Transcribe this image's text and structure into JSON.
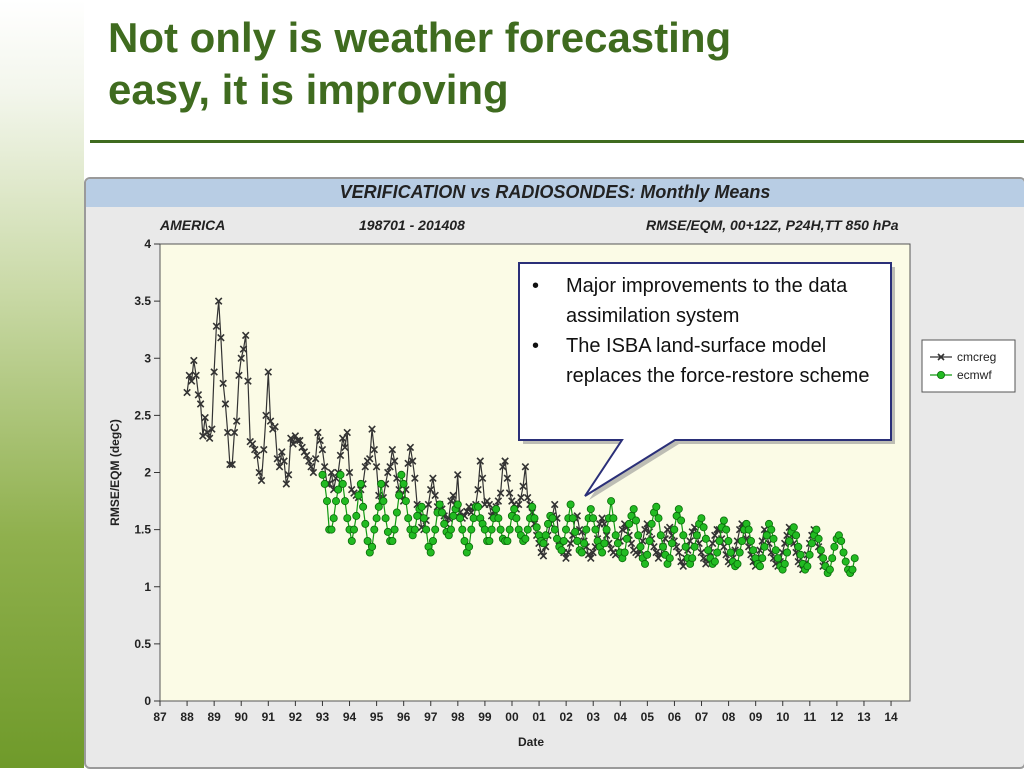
{
  "slide": {
    "title_line1": "Not only is weather forecasting",
    "title_line2": "easy, it is improving",
    "accent_color": "#3f6b1f"
  },
  "panel": {
    "title": "VERIFICATION vs RADIOSONDES: Monthly Means",
    "region": "AMERICA",
    "period": "198701 - 201408",
    "metric": "RMSE/EQM, 00+12Z, P24H,TT 850 hPa"
  },
  "callout": {
    "bullets": [
      "Major improvements to the data assimilation system",
      "The ISBA land-surface model replaces the force-restore scheme"
    ]
  },
  "chart_data": {
    "type": "line",
    "xlabel": "Date",
    "ylabel": "RMSE/EQM (degC)",
    "ylim": [
      0,
      4
    ],
    "xlim": [
      1987.0,
      2014.7
    ],
    "yticks": [
      "0",
      "0.5",
      "1",
      "1.5",
      "2",
      "2.5",
      "3",
      "3.5",
      "4"
    ],
    "xticks": [
      "87",
      "88",
      "89",
      "90",
      "91",
      "92",
      "93",
      "94",
      "95",
      "96",
      "97",
      "98",
      "99",
      "00",
      "01",
      "02",
      "03",
      "04",
      "05",
      "06",
      "07",
      "08",
      "09",
      "10",
      "11",
      "12",
      "13",
      "14"
    ],
    "legend_position": "right",
    "plot_background": "#fbfbe6",
    "grid": true,
    "series": [
      {
        "name": "cmcreg",
        "color": "#333333",
        "marker": "x",
        "start": 1988.0,
        "step": 0.0833,
        "values": [
          2.7,
          2.85,
          2.8,
          2.98,
          2.85,
          2.68,
          2.6,
          2.32,
          2.48,
          2.35,
          2.3,
          2.38,
          2.88,
          3.28,
          3.5,
          3.18,
          2.78,
          2.6,
          2.35,
          2.07,
          2.07,
          2.35,
          2.45,
          2.85,
          3.0,
          3.08,
          3.2,
          2.8,
          2.27,
          2.25,
          2.2,
          2.15,
          2.0,
          1.93,
          2.2,
          2.5,
          2.88,
          2.45,
          2.38,
          2.4,
          2.12,
          2.05,
          2.18,
          2.1,
          1.9,
          1.98,
          2.3,
          2.25,
          2.32,
          2.28,
          2.28,
          2.22,
          2.18,
          2.15,
          2.1,
          2.05,
          2.0,
          2.12,
          2.35,
          2.28,
          2.2,
          2.05,
          1.9,
          1.9,
          2.0,
          1.85,
          1.95,
          2.0,
          2.15,
          2.3,
          2.22,
          2.35,
          2.0,
          1.85,
          1.82,
          1.8,
          1.78,
          1.85,
          1.9,
          2.05,
          2.1,
          2.12,
          2.38,
          2.2,
          2.05,
          1.8,
          1.75,
          1.78,
          1.9,
          2.0,
          2.05,
          2.2,
          2.1,
          1.95,
          1.85,
          1.8,
          1.75,
          1.85,
          2.08,
          2.22,
          2.1,
          1.95,
          1.72,
          1.65,
          1.52,
          1.5,
          1.58,
          1.72,
          1.85,
          1.95,
          1.8,
          1.7,
          1.72,
          1.68,
          1.62,
          1.55,
          1.6,
          1.75,
          1.8,
          1.72,
          1.98,
          1.65,
          1.6,
          1.62,
          1.66,
          1.7,
          1.65,
          1.7,
          1.72,
          1.85,
          2.1,
          1.95,
          1.72,
          1.75,
          1.72,
          1.62,
          1.66,
          1.7,
          1.75,
          1.82,
          2.05,
          2.1,
          1.95,
          1.82,
          1.75,
          1.72,
          1.68,
          1.72,
          1.78,
          1.88,
          2.05,
          1.78,
          1.72,
          1.65,
          1.55,
          1.45,
          1.38,
          1.3,
          1.27,
          1.35,
          1.45,
          1.55,
          1.62,
          1.72,
          1.6,
          1.4,
          1.35,
          1.3,
          1.25,
          1.3,
          1.38,
          1.45,
          1.6,
          1.62,
          1.5,
          1.48,
          1.4,
          1.35,
          1.28,
          1.25,
          1.3,
          1.35,
          1.42,
          1.55,
          1.6,
          1.55,
          1.45,
          1.38,
          1.33,
          1.3,
          1.28,
          1.3,
          1.4,
          1.5,
          1.55,
          1.52,
          1.45,
          1.38,
          1.32,
          1.3,
          1.28,
          1.32,
          1.4,
          1.5,
          1.55,
          1.48,
          1.42,
          1.35,
          1.3,
          1.25,
          1.28,
          1.35,
          1.42,
          1.5,
          1.52,
          1.45,
          1.4,
          1.35,
          1.3,
          1.22,
          1.18,
          1.25,
          1.32,
          1.4,
          1.48,
          1.52,
          1.45,
          1.38,
          1.3,
          1.25,
          1.2,
          1.22,
          1.3,
          1.38,
          1.45,
          1.5,
          1.5,
          1.42,
          1.35,
          1.28,
          1.22,
          1.2,
          1.25,
          1.32,
          1.4,
          1.5,
          1.55,
          1.5,
          1.42,
          1.35,
          1.28,
          1.22,
          1.18,
          1.25,
          1.32,
          1.4,
          1.5,
          1.45,
          1.38,
          1.3,
          1.25,
          1.2,
          1.18,
          1.22,
          1.3,
          1.38,
          1.45,
          1.52,
          1.45,
          1.38,
          1.3,
          1.22,
          1.2,
          1.15,
          1.2,
          1.28,
          1.38,
          1.45,
          1.5,
          1.42,
          1.35,
          1.28,
          1.18,
          1.2
        ]
      },
      {
        "name": "ecmwf",
        "color": "#22bb22",
        "marker": "o",
        "start": 1993.0,
        "step": 0.0833,
        "values": [
          1.98,
          1.9,
          1.75,
          1.5,
          1.5,
          1.6,
          1.75,
          1.85,
          1.98,
          1.9,
          1.75,
          1.6,
          1.5,
          1.4,
          1.5,
          1.62,
          1.8,
          1.9,
          1.7,
          1.55,
          1.4,
          1.3,
          1.35,
          1.5,
          1.6,
          1.7,
          1.9,
          1.75,
          1.6,
          1.48,
          1.4,
          1.4,
          1.5,
          1.65,
          1.8,
          1.98,
          1.9,
          1.75,
          1.6,
          1.5,
          1.45,
          1.5,
          1.62,
          1.68,
          1.7,
          1.6,
          1.5,
          1.35,
          1.3,
          1.4,
          1.5,
          1.65,
          1.72,
          1.65,
          1.55,
          1.48,
          1.45,
          1.5,
          1.62,
          1.68,
          1.72,
          1.6,
          1.5,
          1.4,
          1.3,
          1.35,
          1.5,
          1.6,
          1.7,
          1.7,
          1.6,
          1.55,
          1.5,
          1.4,
          1.4,
          1.5,
          1.6,
          1.68,
          1.6,
          1.5,
          1.42,
          1.4,
          1.4,
          1.5,
          1.62,
          1.68,
          1.6,
          1.5,
          1.45,
          1.4,
          1.42,
          1.5,
          1.6,
          1.7,
          1.6,
          1.52,
          1.45,
          1.4,
          1.38,
          1.45,
          1.55,
          1.62,
          1.6,
          1.5,
          1.42,
          1.35,
          1.32,
          1.4,
          1.5,
          1.6,
          1.72,
          1.6,
          1.48,
          1.4,
          1.32,
          1.3,
          1.38,
          1.5,
          1.6,
          1.68,
          1.6,
          1.5,
          1.4,
          1.35,
          1.3,
          1.38,
          1.5,
          1.6,
          1.75,
          1.6,
          1.45,
          1.38,
          1.3,
          1.25,
          1.3,
          1.42,
          1.55,
          1.62,
          1.68,
          1.58,
          1.45,
          1.35,
          1.25,
          1.2,
          1.28,
          1.4,
          1.55,
          1.65,
          1.7,
          1.6,
          1.45,
          1.35,
          1.28,
          1.2,
          1.25,
          1.38,
          1.5,
          1.62,
          1.68,
          1.58,
          1.45,
          1.35,
          1.25,
          1.2,
          1.25,
          1.35,
          1.45,
          1.55,
          1.6,
          1.52,
          1.42,
          1.32,
          1.25,
          1.2,
          1.22,
          1.3,
          1.4,
          1.52,
          1.58,
          1.5,
          1.4,
          1.3,
          1.22,
          1.18,
          1.2,
          1.3,
          1.4,
          1.5,
          1.55,
          1.5,
          1.4,
          1.32,
          1.25,
          1.2,
          1.18,
          1.25,
          1.35,
          1.45,
          1.55,
          1.5,
          1.42,
          1.32,
          1.25,
          1.18,
          1.15,
          1.2,
          1.3,
          1.4,
          1.48,
          1.52,
          1.45,
          1.35,
          1.28,
          1.2,
          1.15,
          1.18,
          1.28,
          1.38,
          1.45,
          1.5,
          1.42,
          1.32,
          1.25,
          1.18,
          1.12,
          1.15,
          1.25,
          1.35,
          1.42,
          1.45,
          1.4,
          1.3,
          1.22,
          1.15,
          1.12,
          1.15,
          1.25
        ]
      }
    ]
  }
}
